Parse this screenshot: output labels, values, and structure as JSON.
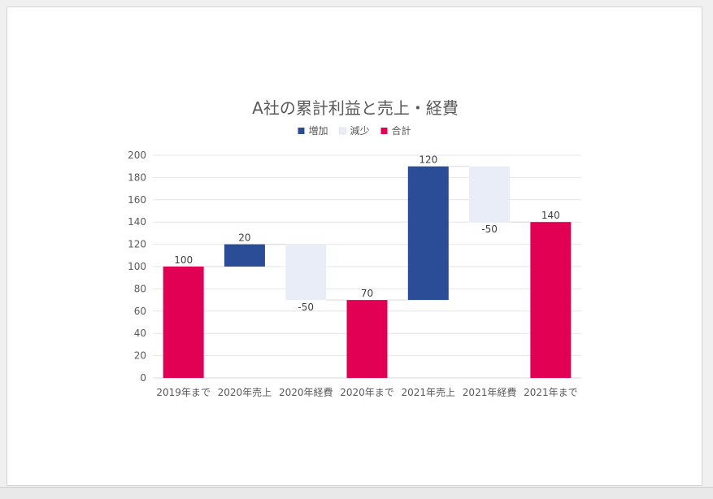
{
  "chart_data": {
    "type": "waterfall",
    "title": "A社の累計利益と売上・経費",
    "legend": {
      "placement": "top",
      "entries": [
        {
          "key": "increase",
          "name": "増加",
          "color": "#2b4c97"
        },
        {
          "key": "decrease",
          "name": "減少",
          "color": "#e8edf7"
        },
        {
          "key": "total",
          "name": "合計",
          "color": "#e20054"
        }
      ]
    },
    "categories": [
      "2019年まで",
      "2020年売上",
      "2020年経費",
      "2020年まで",
      "2021年売上",
      "2021年経費",
      "2021年まで"
    ],
    "values": [
      100,
      20,
      -50,
      70,
      120,
      -50,
      140
    ],
    "kinds": [
      "total",
      "increase",
      "decrease",
      "total",
      "increase",
      "decrease",
      "total"
    ],
    "data_labels": [
      "100",
      "20",
      "-50",
      "70",
      "120",
      "-50",
      "140"
    ],
    "y_ticks": [
      "0",
      "20",
      "40",
      "60",
      "80",
      "100",
      "120",
      "140",
      "160",
      "180",
      "200"
    ],
    "ylim": [
      0,
      200
    ],
    "grid": true,
    "xlabel": "",
    "ylabel": ""
  }
}
